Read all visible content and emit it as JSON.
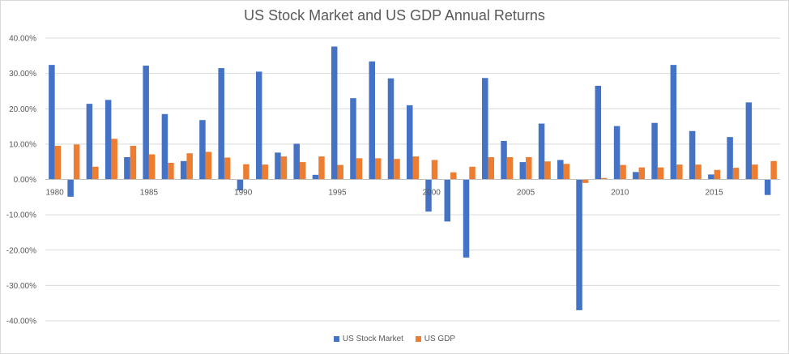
{
  "chart_data": {
    "type": "bar",
    "title": "US Stock Market and US GDP Annual Returns",
    "xlabel": "",
    "ylabel": "",
    "ylim": [
      -40,
      40
    ],
    "yticks": [
      "40.00%",
      "30.00%",
      "20.00%",
      "10.00%",
      "0.00%",
      "-10.00%",
      "-20.00%",
      "-30.00%",
      "-40.00%"
    ],
    "xtick_labels": [
      "1980",
      "1985",
      "1990",
      "1995",
      "2000",
      "2005",
      "2010",
      "2015"
    ],
    "categories": [
      1980,
      1981,
      1982,
      1983,
      1984,
      1985,
      1986,
      1987,
      1988,
      1989,
      1990,
      1991,
      1992,
      1993,
      1994,
      1995,
      1996,
      1997,
      1998,
      1999,
      2000,
      2001,
      2002,
      2003,
      2004,
      2005,
      2006,
      2007,
      2008,
      2009,
      2010,
      2011,
      2012,
      2013,
      2014,
      2015,
      2016,
      2017,
      2018
    ],
    "series": [
      {
        "name": "US Stock Market",
        "color": "#4472C4",
        "values": [
          32.4,
          -4.9,
          21.4,
          22.5,
          6.3,
          32.2,
          18.5,
          5.2,
          16.8,
          31.5,
          -3.1,
          30.5,
          7.6,
          10.1,
          1.3,
          37.6,
          23.0,
          33.4,
          28.6,
          21.0,
          -9.1,
          -11.9,
          -22.1,
          28.7,
          10.9,
          4.9,
          15.8,
          5.5,
          -37.0,
          26.5,
          15.1,
          2.1,
          16.0,
          32.4,
          13.7,
          1.4,
          12.0,
          21.8,
          -4.4
        ]
      },
      {
        "name": "US GDP",
        "color": "#ED7D31",
        "values": [
          9.5,
          9.9,
          3.6,
          11.5,
          9.5,
          7.1,
          4.7,
          7.4,
          7.8,
          6.2,
          4.3,
          4.2,
          6.5,
          4.9,
          6.5,
          4.1,
          6.0,
          6.0,
          5.8,
          6.5,
          5.5,
          2.0,
          3.6,
          6.3,
          6.3,
          6.3,
          5.1,
          4.4,
          -1.0,
          0.4,
          4.1,
          3.4,
          3.4,
          4.2,
          4.2,
          2.7,
          3.3,
          4.2,
          5.2
        ]
      }
    ],
    "legend_position": "bottom"
  }
}
